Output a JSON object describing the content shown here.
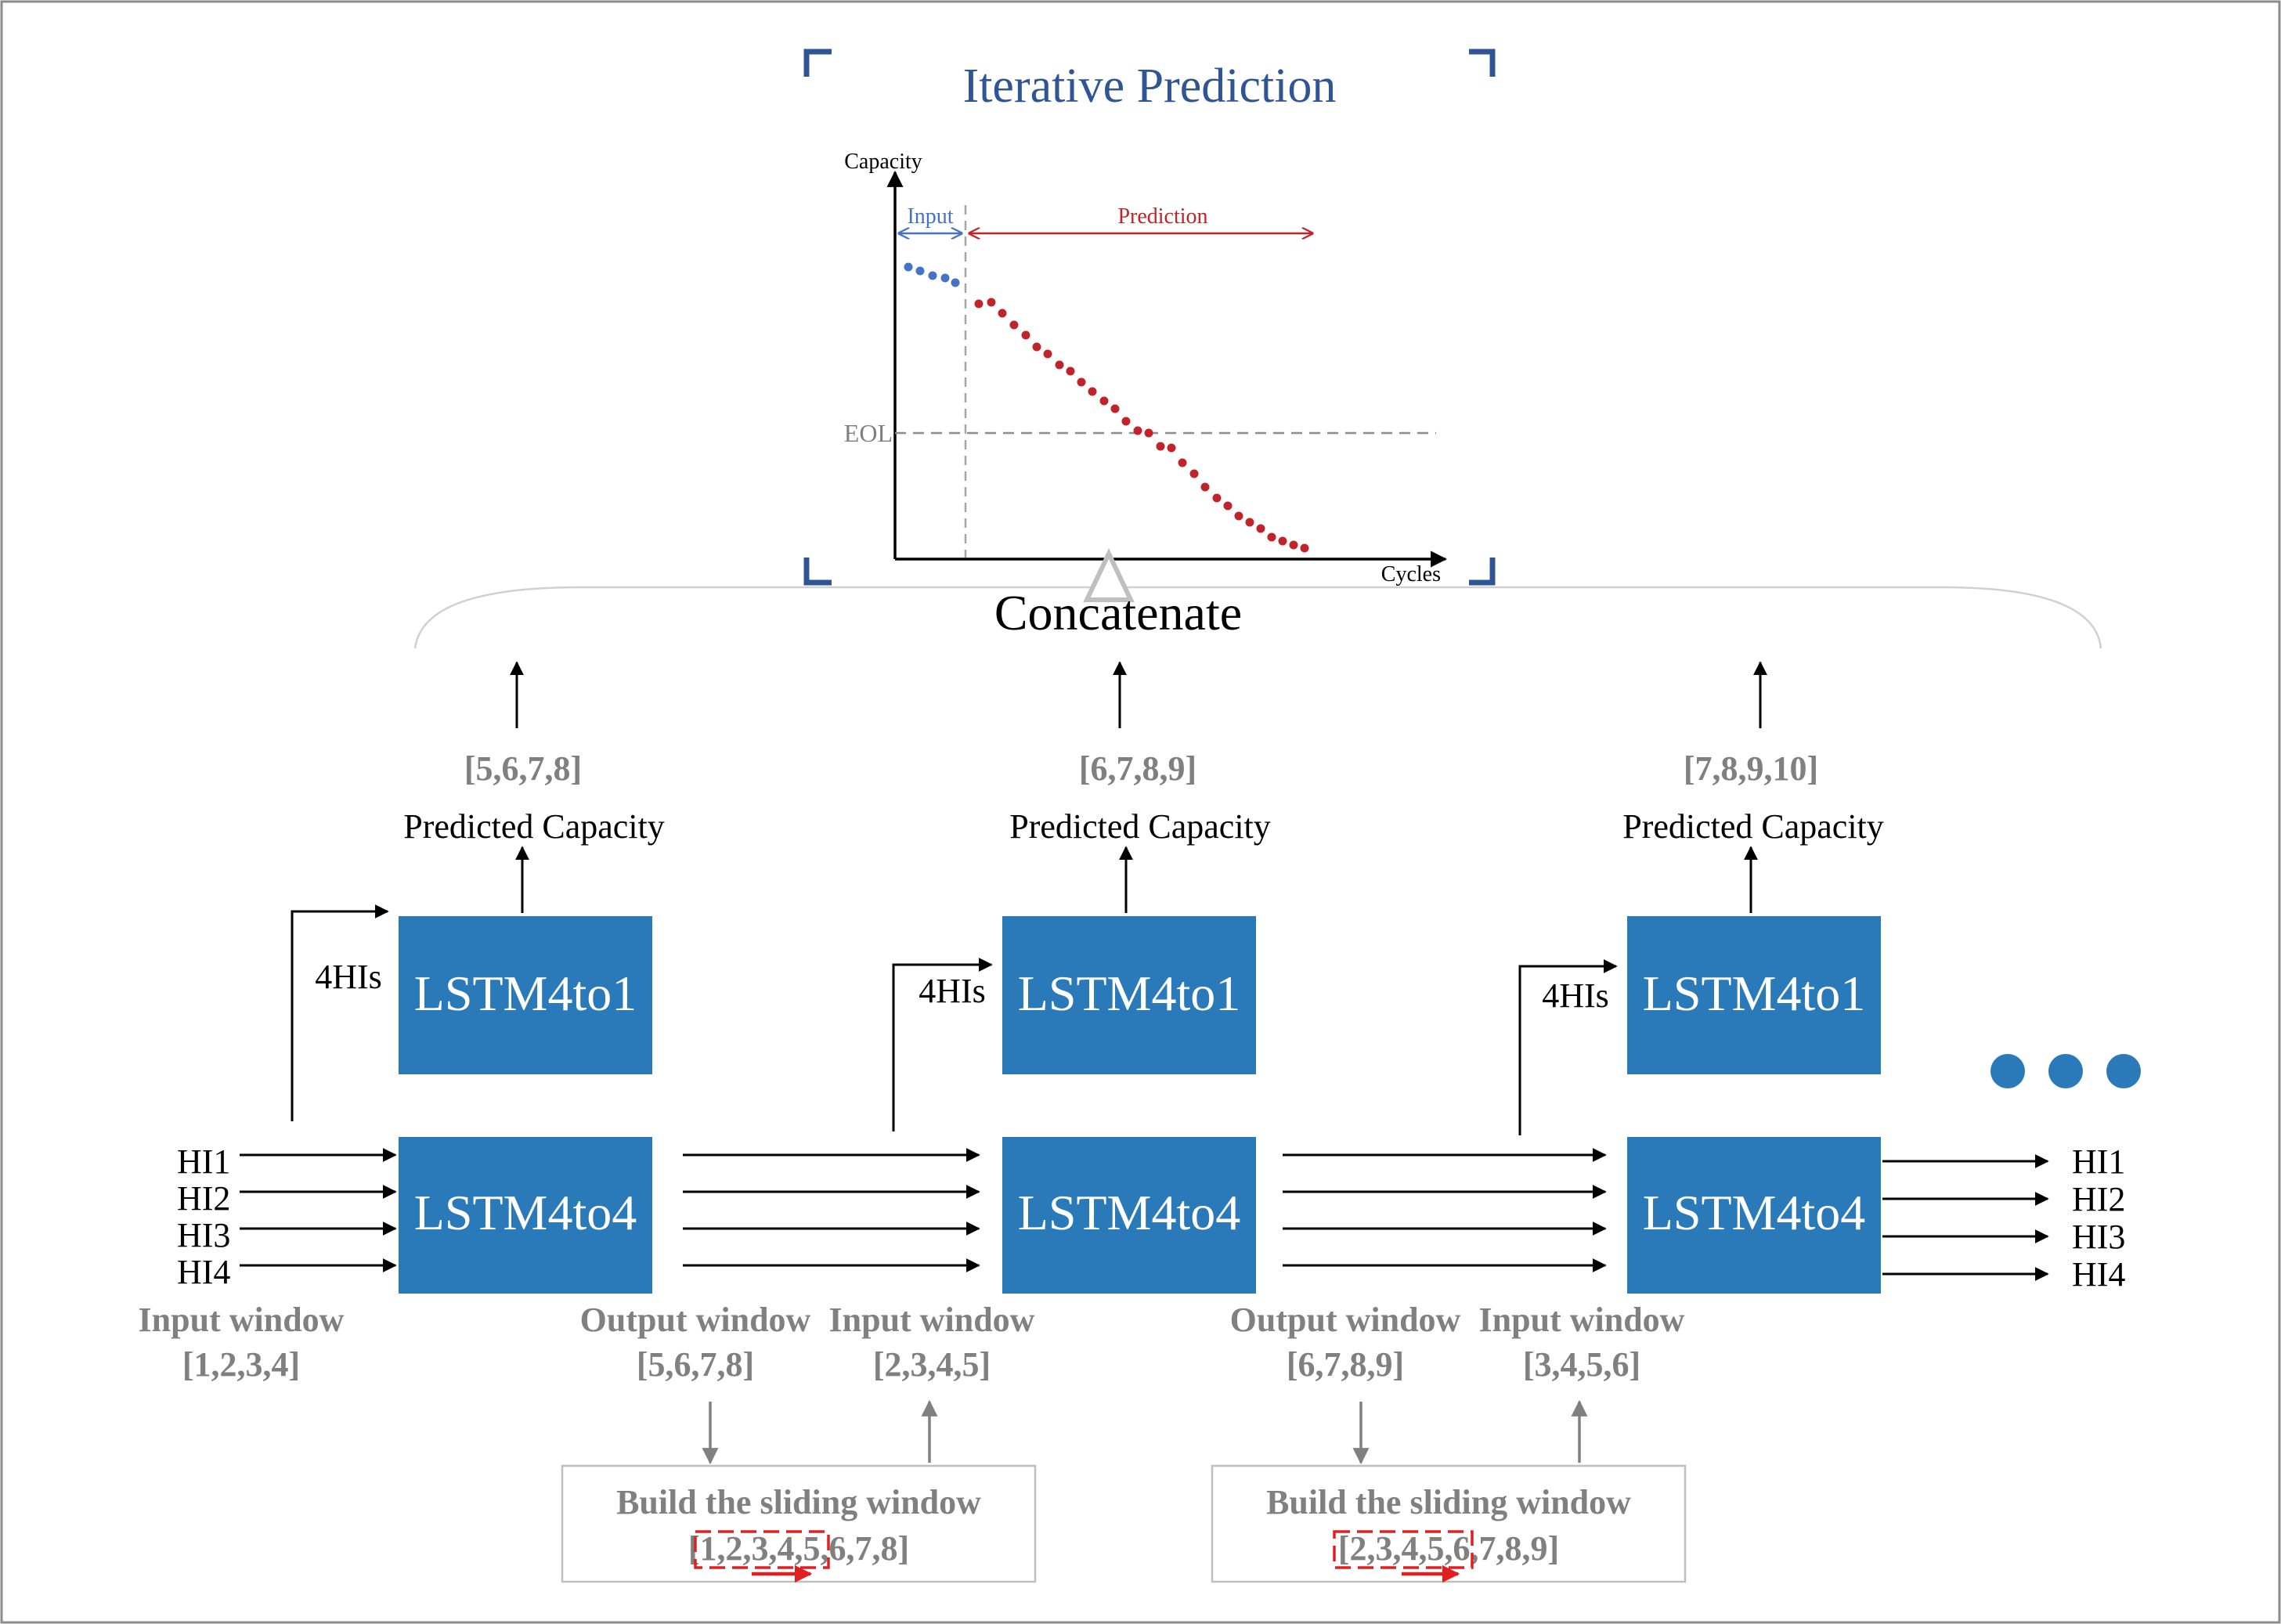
{
  "colors": {
    "box_fill": "#2A7AB9",
    "box_text": "#FFFFFF",
    "frame_corner": "#2F5597",
    "title": "#2F5597",
    "input_series": "#4472C4",
    "prediction_series": "#C0232A",
    "gray_text": "#808080",
    "sliding_highlight": "#E02020"
  },
  "inset": {
    "title": "Iterative Prediction",
    "y_axis_label": "Capacity",
    "x_axis_label": "Cycles",
    "input_label": "Input",
    "prediction_label": "Prediction",
    "eol_label": "EOL"
  },
  "concatenate_label": "Concatenate",
  "ellipsis_icon": "three-dots-icon",
  "stages": [
    {
      "predicted_window": "[5,6,7,8]",
      "predicted_label": "Predicted Capacity",
      "his_label": "4HIs",
      "lstm_top": "LSTM4to1",
      "lstm_bottom": "LSTM4to4"
    },
    {
      "predicted_window": "[6,7,8,9]",
      "predicted_label": "Predicted Capacity",
      "his_label": "4HIs",
      "lstm_top": "LSTM4to1",
      "lstm_bottom": "LSTM4to4"
    },
    {
      "predicted_window": "[7,8,9,10]",
      "predicted_label": "Predicted Capacity",
      "his_label": "4HIs",
      "lstm_top": "LSTM4to1",
      "lstm_bottom": "LSTM4to4"
    }
  ],
  "input_his": [
    "HI1",
    "HI2",
    "HI3",
    "HI4"
  ],
  "output_his": [
    "HI1",
    "HI2",
    "HI3",
    "HI4"
  ],
  "windows": {
    "input_window_label": "Input window",
    "output_window_label": "Output window",
    "input_1": "[1,2,3,4]",
    "output_1": "[5,6,7,8]",
    "input_2": "[2,3,4,5]",
    "output_2": "[6,7,8,9]",
    "input_3": "[3,4,5,6]"
  },
  "sliding": [
    {
      "title": "Build the sliding window",
      "sequence": "[1,2,3,4,5,6,7,8]"
    },
    {
      "title": "Build the sliding window",
      "sequence": "[2,3,4,5,6,7,8,9]"
    }
  ]
}
